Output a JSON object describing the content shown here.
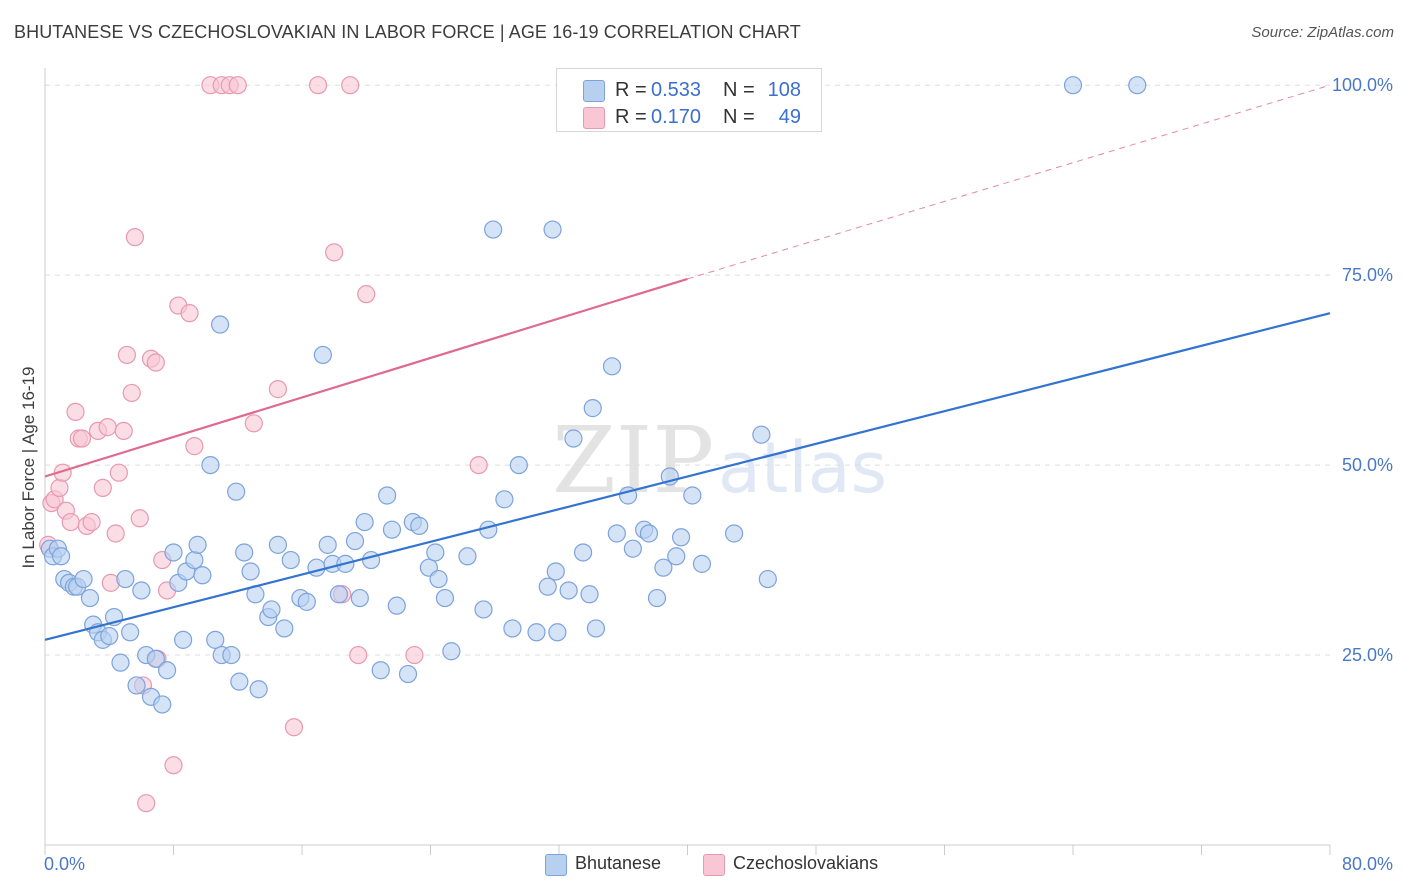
{
  "header": {
    "title": "BHUTANESE VS CZECHOSLOVAKIAN IN LABOR FORCE | AGE 16-19 CORRELATION CHART",
    "source_prefix": "Source: ",
    "source_site": "ZipAtlas.com"
  },
  "colors": {
    "blue_fill": "#b8d0f0",
    "blue_stroke": "#7da3dc",
    "blue_line": "#3373d1",
    "pink_fill": "#f8c6d4",
    "pink_stroke": "#e899b2",
    "pink_line": "#e0698f",
    "grid": "#dddddd",
    "tick_label": "#4a78c8"
  },
  "legend": {
    "rows": [
      {
        "r_label": "R =",
        "r_value": "0.533",
        "n_label": "N =",
        "n_value": "108"
      },
      {
        "r_label": "R =",
        "r_value": "0.170",
        "n_label": "N =",
        "n_value": "49"
      }
    ]
  },
  "bottom_legend": [
    "Bhutanese",
    "Czechoslovakians"
  ],
  "watermark": {
    "zip": "ZIP",
    "atlas": "atlas"
  },
  "chart_data": {
    "type": "scatter",
    "title": "BHUTANESE VS CZECHOSLOVAKIAN IN LABOR FORCE | AGE 16-19 CORRELATION CHART",
    "xlabel": "",
    "ylabel": "In Labor Force | Age 16-19",
    "xlim": [
      0,
      80
    ],
    "ylim": [
      0,
      102
    ],
    "x_tick_labels": [
      "0.0%",
      "80.0%"
    ],
    "y_ticks": [
      25,
      50,
      75,
      100
    ],
    "y_tick_labels": [
      "25.0%",
      "50.0%",
      "75.0%",
      "100.0%"
    ],
    "grid": true,
    "series": [
      {
        "name": "Bhutanese",
        "R": 0.533,
        "N": 108,
        "trend": {
          "x0": 0,
          "y0": 27.0,
          "x1": 80,
          "y1": 70.0,
          "style": "solid"
        },
        "points": [
          [
            0.3,
            39
          ],
          [
            0.5,
            38
          ],
          [
            0.8,
            39
          ],
          [
            1.0,
            38
          ],
          [
            1.2,
            35
          ],
          [
            1.5,
            34.5
          ],
          [
            1.8,
            34
          ],
          [
            2.0,
            34
          ],
          [
            2.4,
            35
          ],
          [
            2.8,
            32.5
          ],
          [
            3.0,
            29
          ],
          [
            3.3,
            28
          ],
          [
            3.6,
            27
          ],
          [
            4.0,
            27.5
          ],
          [
            4.3,
            30
          ],
          [
            4.7,
            24
          ],
          [
            5.0,
            35
          ],
          [
            5.3,
            28
          ],
          [
            5.7,
            21
          ],
          [
            6.0,
            33.5
          ],
          [
            6.3,
            25
          ],
          [
            6.6,
            19.5
          ],
          [
            6.9,
            24.5
          ],
          [
            7.3,
            18.5
          ],
          [
            7.6,
            23
          ],
          [
            8.0,
            38.5
          ],
          [
            8.3,
            34.5
          ],
          [
            8.6,
            27
          ],
          [
            8.8,
            36
          ],
          [
            9.3,
            37.5
          ],
          [
            9.5,
            39.5
          ],
          [
            9.8,
            35.5
          ],
          [
            10.3,
            50
          ],
          [
            10.6,
            27
          ],
          [
            11.0,
            25
          ],
          [
            10.9,
            68.5
          ],
          [
            11.6,
            25
          ],
          [
            11.9,
            46.5
          ],
          [
            12.1,
            21.5
          ],
          [
            12.4,
            38.5
          ],
          [
            12.8,
            36
          ],
          [
            13.1,
            33
          ],
          [
            13.3,
            20.5
          ],
          [
            13.9,
            30
          ],
          [
            14.1,
            31
          ],
          [
            14.5,
            39.5
          ],
          [
            14.9,
            28.5
          ],
          [
            15.3,
            37.5
          ],
          [
            15.9,
            32.5
          ],
          [
            16.3,
            32
          ],
          [
            16.9,
            36.5
          ],
          [
            17.3,
            64.5
          ],
          [
            17.6,
            39.5
          ],
          [
            17.9,
            37
          ],
          [
            18.3,
            33
          ],
          [
            18.7,
            37
          ],
          [
            19.3,
            40
          ],
          [
            19.6,
            32.5
          ],
          [
            19.9,
            42.5
          ],
          [
            20.3,
            37.5
          ],
          [
            20.9,
            23
          ],
          [
            21.3,
            46
          ],
          [
            21.6,
            41.5
          ],
          [
            21.9,
            31.5
          ],
          [
            22.6,
            22.5
          ],
          [
            22.9,
            42.5
          ],
          [
            23.3,
            42
          ],
          [
            23.9,
            36.5
          ],
          [
            24.3,
            38.5
          ],
          [
            24.5,
            35
          ],
          [
            24.9,
            32.5
          ],
          [
            25.3,
            25.5
          ],
          [
            26.3,
            38
          ],
          [
            27.3,
            31
          ],
          [
            27.6,
            41.5
          ],
          [
            27.9,
            81
          ],
          [
            28.6,
            45.5
          ],
          [
            29.1,
            28.5
          ],
          [
            30.6,
            28
          ],
          [
            31.3,
            34
          ],
          [
            31.6,
            81
          ],
          [
            31.8,
            36
          ],
          [
            31.9,
            28
          ],
          [
            32.6,
            33.5
          ],
          [
            32.9,
            53.5
          ],
          [
            33.5,
            38.5
          ],
          [
            33.9,
            33
          ],
          [
            34.1,
            57.5
          ],
          [
            34.3,
            28.5
          ],
          [
            35.3,
            63
          ],
          [
            35.6,
            41
          ],
          [
            36.3,
            46
          ],
          [
            36.6,
            39
          ],
          [
            37.3,
            41.5
          ],
          [
            37.6,
            41
          ],
          [
            38.1,
            32.5
          ],
          [
            38.5,
            36.5
          ],
          [
            38.9,
            48.5
          ],
          [
            39.3,
            38
          ],
          [
            39.6,
            40.5
          ],
          [
            40.3,
            46
          ],
          [
            40.9,
            37
          ],
          [
            42.9,
            41
          ],
          [
            44.6,
            54
          ],
          [
            45.0,
            35
          ],
          [
            64.0,
            100
          ],
          [
            68.0,
            100
          ],
          [
            29.5,
            50
          ]
        ]
      },
      {
        "name": "Czechoslovakians",
        "R": 0.17,
        "N": 49,
        "trend": {
          "x0": 0,
          "y0": 48.5,
          "x1": 40,
          "y1": 74.5,
          "dashed_to": {
            "x": 80,
            "y": 100
          }
        },
        "points": [
          [
            0.2,
            39.5
          ],
          [
            0.4,
            45
          ],
          [
            0.6,
            45.5
          ],
          [
            0.9,
            47
          ],
          [
            1.1,
            49
          ],
          [
            1.3,
            44
          ],
          [
            1.6,
            42.5
          ],
          [
            1.9,
            57
          ],
          [
            2.1,
            53.5
          ],
          [
            2.3,
            53.5
          ],
          [
            2.6,
            42
          ],
          [
            2.9,
            42.5
          ],
          [
            3.3,
            54.5
          ],
          [
            3.6,
            47
          ],
          [
            3.9,
            55
          ],
          [
            4.1,
            34.5
          ],
          [
            4.4,
            41
          ],
          [
            4.6,
            49
          ],
          [
            4.9,
            54.5
          ],
          [
            5.1,
            64.5
          ],
          [
            5.4,
            59.5
          ],
          [
            5.6,
            80
          ],
          [
            5.9,
            43
          ],
          [
            6.1,
            21
          ],
          [
            6.3,
            5.5
          ],
          [
            6.6,
            64
          ],
          [
            6.9,
            63.5
          ],
          [
            7.0,
            24.5
          ],
          [
            7.3,
            37.5
          ],
          [
            7.6,
            33.5
          ],
          [
            8.0,
            10.5
          ],
          [
            8.3,
            71
          ],
          [
            9.0,
            70
          ],
          [
            9.3,
            52.5
          ],
          [
            10.3,
            100
          ],
          [
            11.0,
            100
          ],
          [
            11.5,
            100
          ],
          [
            12.0,
            100
          ],
          [
            13.0,
            55.5
          ],
          [
            14.5,
            60
          ],
          [
            15.5,
            15.5
          ],
          [
            17.0,
            100
          ],
          [
            18.0,
            78
          ],
          [
            18.5,
            33
          ],
          [
            19.0,
            100
          ],
          [
            19.5,
            25
          ],
          [
            20.0,
            72.5
          ],
          [
            23.0,
            25
          ],
          [
            27.0,
            50
          ]
        ]
      }
    ]
  }
}
